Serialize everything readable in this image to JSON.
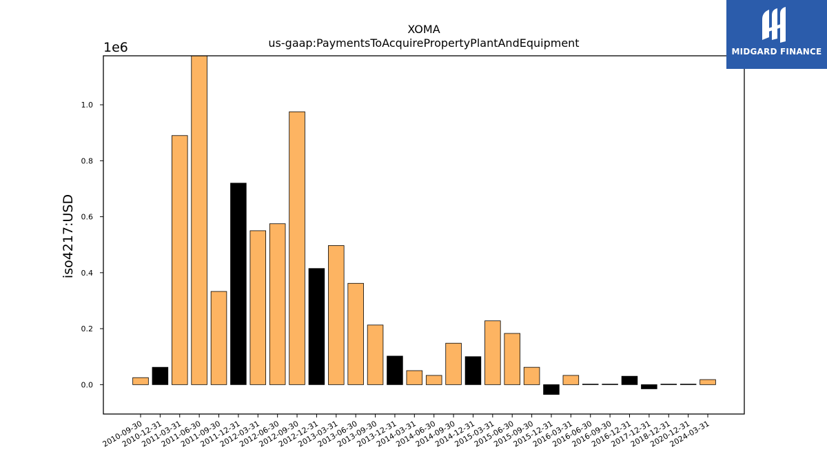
{
  "chart_data": {
    "type": "bar",
    "title": "XOMA",
    "subtitle": "us-gaap:PaymentsToAcquirePropertyPlantAndEquipment",
    "ylabel": "iso4217:USD",
    "xlabel": "",
    "y_multiplier_label": "1e6",
    "ylim": [
      -105000,
      1175000
    ],
    "yticks": [
      0.0,
      0.2,
      0.4,
      0.6,
      0.8,
      1.0
    ],
    "ytick_labels": [
      "0.0",
      "0.2",
      "0.4",
      "0.6",
      "0.8",
      "1.0"
    ],
    "grid": false,
    "categories": [
      "2010-09-30",
      "2010-12-31",
      "2011-03-31",
      "2011-06-30",
      "2011-09-30",
      "2011-12-31",
      "2012-03-31",
      "2012-06-30",
      "2012-09-30",
      "2012-12-31",
      "2013-03-31",
      "2013-06-30",
      "2013-09-30",
      "2013-12-31",
      "2014-03-31",
      "2014-06-30",
      "2014-09-30",
      "2014-12-31",
      "2015-03-31",
      "2015-06-30",
      "2015-09-30",
      "2015-12-31",
      "2016-03-31",
      "2016-06-30",
      "2016-09-30",
      "2016-12-31",
      "2017-12-31",
      "2018-12-31",
      "2020-12-31",
      "2024-03-31"
    ],
    "values": [
      25000,
      62000,
      890000,
      1175000,
      333000,
      720000,
      550000,
      575000,
      975000,
      415000,
      497000,
      362000,
      213000,
      102000,
      50000,
      33000,
      148000,
      100000,
      228000,
      183000,
      62000,
      -35000,
      33000,
      2000,
      2000,
      30000,
      -15000,
      2000,
      2000,
      18000
    ],
    "bar_colors": [
      "#fdb462",
      "#000000",
      "#fdb462",
      "#fdb462",
      "#fdb462",
      "#000000",
      "#fdb462",
      "#fdb462",
      "#fdb462",
      "#000000",
      "#fdb462",
      "#fdb462",
      "#fdb462",
      "#000000",
      "#fdb462",
      "#fdb462",
      "#fdb462",
      "#000000",
      "#fdb462",
      "#fdb462",
      "#fdb462",
      "#000000",
      "#fdb462",
      "#fdb462",
      "#fdb462",
      "#000000",
      "#000000",
      "#000000",
      "#000000",
      "#fdb462"
    ]
  },
  "logo": {
    "text": "MIDGARD FINANCE",
    "background": "#2b5cab"
  }
}
